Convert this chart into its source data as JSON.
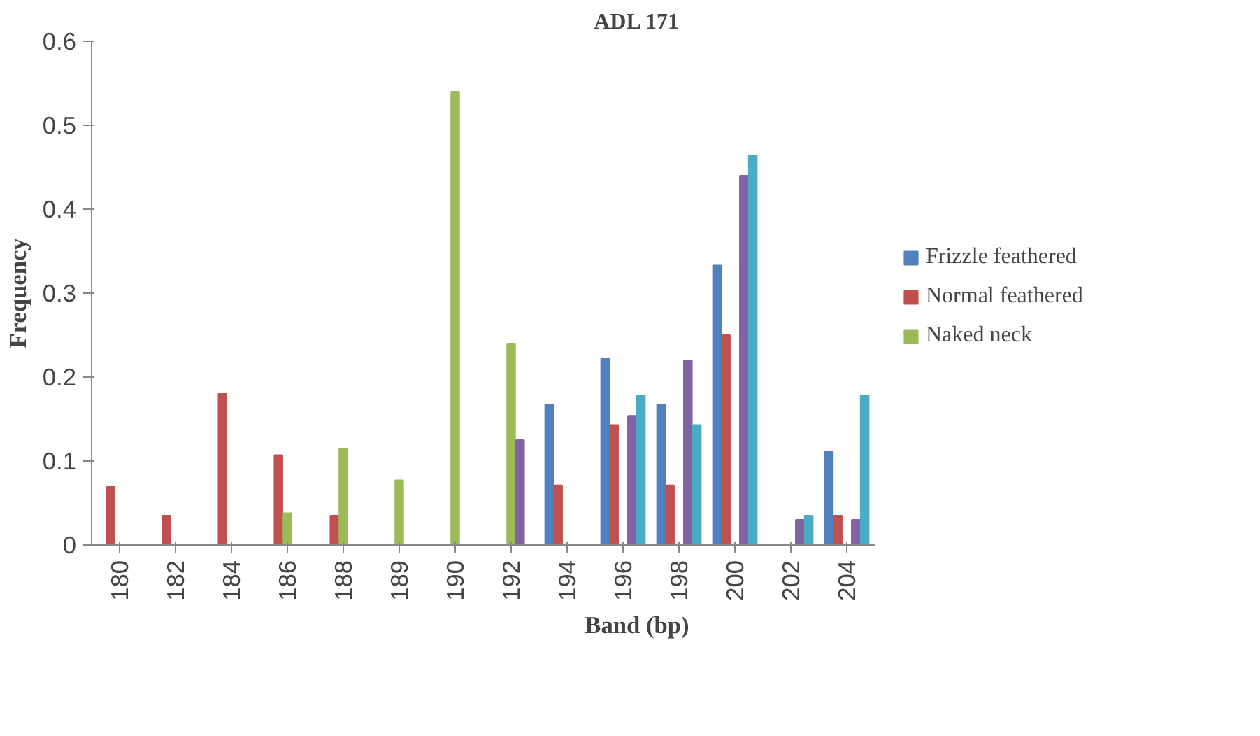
{
  "chart_data": {
    "type": "bar",
    "title": "ADL 171",
    "xlabel": "Band (bp)",
    "ylabel": "Frequency",
    "categories": [
      "180",
      "182",
      "184",
      "186",
      "188",
      "189",
      "190",
      "192",
      "194",
      "196",
      "198",
      "200",
      "202",
      "204"
    ],
    "series": [
      {
        "name": "Frizzle feathered",
        "color": "#4f81bd",
        "values": [
          0,
          0,
          0,
          0,
          0,
          0,
          0,
          0,
          0.167,
          0.222,
          0.167,
          0.333,
          0,
          0.111
        ]
      },
      {
        "name": "Normal feathered",
        "color": "#c0504d",
        "values": [
          0.07,
          0.035,
          0.18,
          0.107,
          0.035,
          0,
          0,
          0,
          0.071,
          0.143,
          0.071,
          0.25,
          0,
          0.035
        ]
      },
      {
        "name": "Naked neck",
        "color": "#9bbb59",
        "values": [
          0,
          0,
          0,
          0.038,
          0.115,
          0.077,
          0.54,
          0.24,
          0,
          0,
          0,
          0,
          0,
          0
        ]
      },
      {
        "color": "#8064a2",
        "values": [
          0,
          0,
          0,
          0,
          0,
          0,
          0,
          0.125,
          0,
          0.154,
          0.22,
          0.44,
          0.03,
          0.03
        ]
      },
      {
        "color": "#4bacc6",
        "values": [
          0,
          0,
          0,
          0,
          0,
          0,
          0,
          0,
          0,
          0.178,
          0.143,
          0.464,
          0.035,
          0.178
        ]
      }
    ],
    "ylim": [
      0,
      0.6
    ],
    "yticks": [
      0,
      0.1,
      0.2,
      0.3,
      0.4,
      0.5,
      0.6
    ],
    "grid": false,
    "legend": "right"
  }
}
